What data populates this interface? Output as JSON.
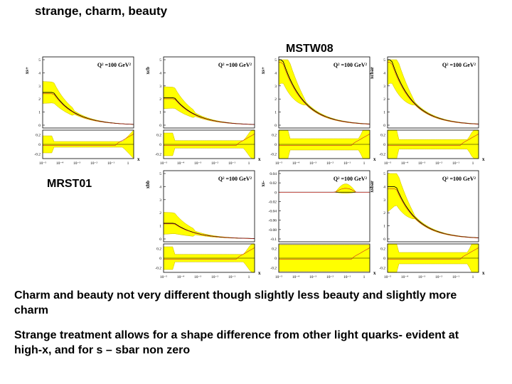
{
  "slide": {
    "title": "strange, charm, beauty",
    "label_top": "MSTW08",
    "label_bottom": "MRST01",
    "caption1": "Charm and beauty not very different though slightly less beauty and slightly more charm",
    "caption2": "Strange treatment allows for a shape difference from other light quarks- evident at high-x, and for s – sbar non zero"
  },
  "colors": {
    "band": "#ffff00",
    "band_edge": "#c8b400",
    "central": "#000000",
    "alt": "#cc2222"
  },
  "panels": [
    {
      "id": "mstw-xs-plus",
      "ylabel": "xs+",
      "qlabel": "Q² =100 GeV²",
      "yticks": [
        "5",
        "4",
        "3",
        "2",
        "1",
        "0"
      ],
      "rticks": [
        "0.2",
        "0",
        "-0.2"
      ],
      "xticks": [
        "10⁻⁵",
        "10⁻⁴",
        "10⁻³",
        "10⁻²",
        "10⁻¹",
        "1"
      ],
      "xlabel": "x",
      "shape": "flat",
      "pdf_at_low_x": 2.5,
      "ratio_half_width": 0.06
    },
    {
      "id": "mstw-xcb",
      "ylabel": "xcb",
      "qlabel": "Q² =100 GeV²",
      "yticks": [
        "5",
        "4",
        "3",
        "2",
        "1",
        "0"
      ],
      "rticks": [
        "0.2",
        "0",
        "-0.2"
      ],
      "xticks": [
        "10⁻⁵",
        "10⁻⁴",
        "10⁻³",
        "10⁻²",
        "10⁻¹",
        "1"
      ],
      "xlabel": "x",
      "shape": "flat",
      "pdf_at_low_x": 2.1,
      "ratio_half_width": 0.08
    },
    {
      "id": "mstw-xs-plus-2",
      "ylabel": "xs+",
      "qlabel": "Q² =100 GeV²",
      "yticks": [
        "5",
        "4",
        "3",
        "2",
        "1",
        "0"
      ],
      "rticks": [
        "0.2",
        "0",
        "-0.2"
      ],
      "xticks": [
        "10⁻⁵",
        "10⁻⁴",
        "10⁻³",
        "10⁻²",
        "10⁻¹",
        "1"
      ],
      "xlabel": "x",
      "shape": "steep",
      "pdf_at_low_x": 5.0,
      "ratio_half_width": 0.12
    },
    {
      "id": "mstw-xcbar",
      "ylabel": "xcbar",
      "qlabel": "Q² =100 GeV²",
      "yticks": [
        "5",
        "4",
        "3",
        "2",
        "1",
        "0"
      ],
      "rticks": [
        "0.2",
        "0",
        "-0.2"
      ],
      "xticks": [
        "10⁻⁵",
        "10⁻⁴",
        "10⁻³",
        "10⁻²",
        "10⁻¹",
        "1"
      ],
      "xlabel": "x",
      "shape": "steep",
      "pdf_at_low_x": 5.0,
      "ratio_half_width": 0.1
    },
    {
      "id": "mrst-xbb",
      "ylabel": "xbb",
      "qlabel": "Q² =100 GeV²",
      "yticks": [
        "5",
        "4",
        "3",
        "2",
        "1",
        "0"
      ],
      "rticks": [
        "0.2",
        "0",
        "-0.2"
      ],
      "xticks": [
        "10⁻⁵",
        "10⁻⁴",
        "10⁻³",
        "10⁻²",
        "10⁻¹",
        "1"
      ],
      "xlabel": "x",
      "shape": "flat",
      "pdf_at_low_x": 1.2,
      "ratio_half_width": 0.08
    },
    {
      "id": "mrst-xs-minus",
      "ylabel": "xs-",
      "qlabel": "Q² =100 GeV²",
      "yticks": [
        "0.04",
        "0.02",
        "0",
        "-0.02",
        "-0.04",
        "-0.06",
        "-0.08",
        "-0.1"
      ],
      "rticks": [
        "0.2",
        "0",
        "-0.2"
      ],
      "xticks": [
        "10⁻⁵",
        "10⁻⁴",
        "10⁻³",
        "10⁻²",
        "10⁻¹",
        "1"
      ],
      "xlabel": "x",
      "shape": "sminus",
      "pdf_at_low_x": 0.0,
      "ratio_half_width": 0.3
    },
    {
      "id": "mrst-xsbar",
      "ylabel": "xsbar",
      "qlabel": "Q² =100 GeV²",
      "yticks": [
        "5",
        "4",
        "3",
        "2",
        "1",
        "0"
      ],
      "rticks": [
        "0.2",
        "0",
        "-0.2"
      ],
      "xticks": [
        "10⁻⁵",
        "10⁻⁴",
        "10⁻³",
        "10⁻²",
        "10⁻¹",
        "1"
      ],
      "xlabel": "x",
      "shape": "steep",
      "pdf_at_low_x": 4.0,
      "ratio_half_width": 0.12
    }
  ]
}
